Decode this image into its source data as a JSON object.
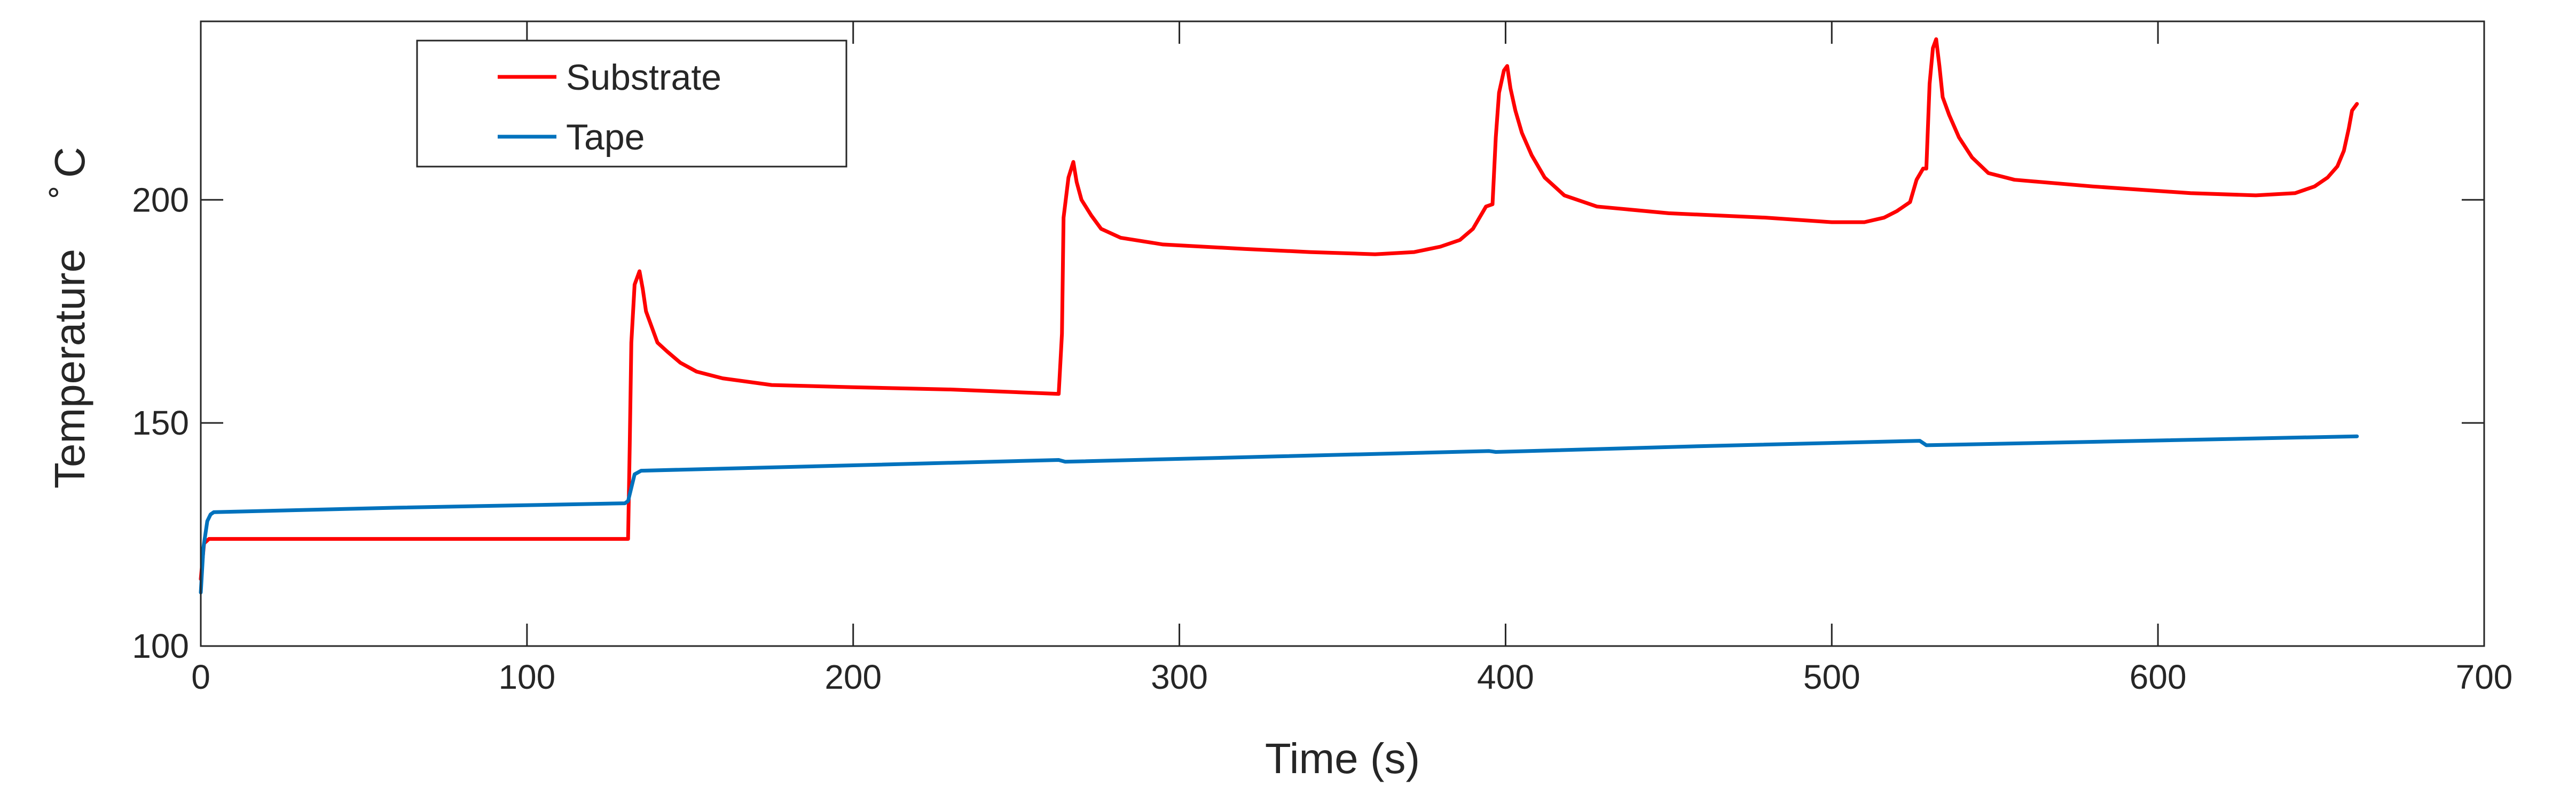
{
  "chart_data": {
    "type": "line",
    "xlabel": "Time (s)",
    "ylabel": "Temperature",
    "ylabel_superscript": "∘",
    "ylabel_unit": "C",
    "xlim": [
      0,
      700
    ],
    "ylim": [
      100,
      240
    ],
    "xticks": [
      "0",
      "100",
      "200",
      "300",
      "400",
      "500",
      "600",
      "700"
    ],
    "yticks": [
      "100",
      "150",
      "200"
    ],
    "grid": false,
    "legend_position": "top-left",
    "series": [
      {
        "name": "Substrate",
        "color": "#ff0000",
        "points": [
          [
            0,
            115
          ],
          [
            1,
            123
          ],
          [
            2.5,
            124
          ],
          [
            10,
            124
          ],
          [
            60,
            124
          ],
          [
            100,
            124
          ],
          [
            130,
            124
          ],
          [
            131,
            124
          ],
          [
            131.5,
            145
          ],
          [
            132,
            168
          ],
          [
            133,
            181
          ],
          [
            134.5,
            184
          ],
          [
            135.5,
            180
          ],
          [
            136.5,
            175
          ],
          [
            138,
            172
          ],
          [
            140,
            168
          ],
          [
            143,
            166
          ],
          [
            147,
            163.5
          ],
          [
            152,
            161.5
          ],
          [
            160,
            160
          ],
          [
            175,
            158.5
          ],
          [
            200,
            158
          ],
          [
            230,
            157.5
          ],
          [
            263,
            156.5
          ],
          [
            264,
            170
          ],
          [
            264.5,
            196
          ],
          [
            266,
            205
          ],
          [
            267.5,
            208.5
          ],
          [
            268.5,
            204
          ],
          [
            270,
            200
          ],
          [
            273,
            196.5
          ],
          [
            276,
            193.5
          ],
          [
            282,
            191.5
          ],
          [
            295,
            190
          ],
          [
            320,
            189
          ],
          [
            340,
            188.3
          ],
          [
            360,
            187.8
          ],
          [
            372,
            188.3
          ],
          [
            380,
            189.5
          ],
          [
            386,
            191
          ],
          [
            390,
            193.5
          ],
          [
            394,
            198.5
          ],
          [
            396,
            199
          ],
          [
            397,
            214
          ],
          [
            398,
            224
          ],
          [
            399.5,
            229
          ],
          [
            400.5,
            230
          ],
          [
            401.5,
            225
          ],
          [
            403,
            220
          ],
          [
            405,
            215
          ],
          [
            408,
            210
          ],
          [
            412,
            205
          ],
          [
            418,
            201
          ],
          [
            428,
            198.5
          ],
          [
            450,
            197
          ],
          [
            480,
            196
          ],
          [
            500,
            195
          ],
          [
            510,
            195
          ],
          [
            516,
            196
          ],
          [
            520,
            197.5
          ],
          [
            524,
            199.5
          ],
          [
            526,
            204.5
          ],
          [
            528,
            207
          ],
          [
            529,
            207
          ],
          [
            530,
            226
          ],
          [
            531,
            234
          ],
          [
            532,
            236
          ],
          [
            533,
            230
          ],
          [
            534,
            223
          ],
          [
            536,
            219
          ],
          [
            539,
            214
          ],
          [
            543,
            209.5
          ],
          [
            548,
            206
          ],
          [
            556,
            204.5
          ],
          [
            580,
            203
          ],
          [
            610,
            201.5
          ],
          [
            630,
            201
          ],
          [
            642,
            201.5
          ],
          [
            648,
            203
          ],
          [
            652,
            205
          ],
          [
            655,
            207.5
          ],
          [
            657,
            211
          ],
          [
            658.5,
            216
          ],
          [
            659.5,
            220
          ],
          [
            661,
            221.5
          ]
        ]
      },
      {
        "name": "Tape",
        "color": "#0072bd",
        "points": [
          [
            0,
            112
          ],
          [
            0.8,
            122
          ],
          [
            2,
            128
          ],
          [
            3,
            129.5
          ],
          [
            4,
            130
          ],
          [
            60,
            131
          ],
          [
            130,
            132
          ],
          [
            131,
            132.5
          ],
          [
            133,
            138.5
          ],
          [
            135,
            139.3
          ],
          [
            200,
            140.5
          ],
          [
            263,
            141.7
          ],
          [
            265,
            141.3
          ],
          [
            330,
            142.5
          ],
          [
            395,
            143.7
          ],
          [
            397,
            143.5
          ],
          [
            460,
            144.8
          ],
          [
            527,
            146
          ],
          [
            529,
            145
          ],
          [
            595,
            146
          ],
          [
            661,
            147
          ]
        ]
      }
    ]
  }
}
